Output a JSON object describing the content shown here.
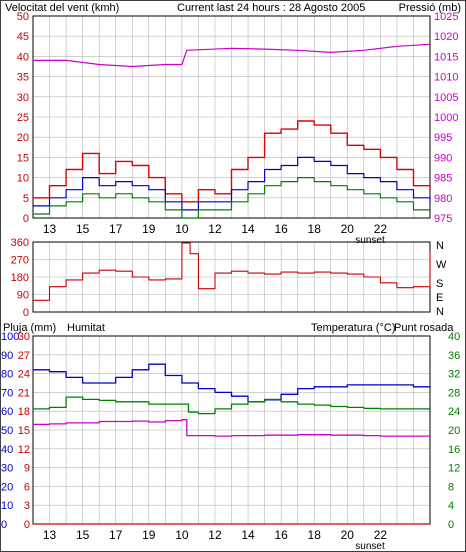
{
  "colors": {
    "wind": "#e00000",
    "windAvg": "#0000cc",
    "windDir": "#cc0000",
    "pressure": "#cc00cc",
    "green": "#008000",
    "humidity": "#0000cc",
    "dewPoint": "#cc00cc",
    "rain": "#cc0000",
    "grid": "#b4b4b4",
    "axisRed": "#cc0000",
    "axisBlue": "#0000cc",
    "axisMagenta": "#cc00cc",
    "axisGreen": "#008000",
    "ink": "#000000"
  },
  "header": {
    "wind_label": "Velocitat del vent (kmh)",
    "title": "Current last 24 hours : 28 Agosto 2005",
    "pressure_label": "Pressió (mb)"
  },
  "middle": {
    "label_n1": "N",
    "label_w": "W",
    "label_s": "S",
    "label_e": "E",
    "label_n2": "N"
  },
  "bottom": {
    "rain_label": "Pluja (mm)",
    "humidity_label": "Humitat",
    "temp_label": "Temperatura (°C)",
    "dew_label": "Punt rosada"
  },
  "x_labels": [
    "13",
    "15",
    "17",
    "19",
    "10",
    "12",
    "14",
    "16",
    "18",
    "20",
    "22"
  ],
  "sunset_label": "sunset",
  "chart_data": [
    {
      "type": "line",
      "axes": {
        "left": {
          "label": "Velocitat del vent (kmh)",
          "ticks": [
            0,
            5,
            10,
            15,
            20,
            25,
            30,
            35,
            40,
            45,
            50
          ],
          "range": [
            0,
            50
          ]
        },
        "right": {
          "label": "Pressió (mb)",
          "ticks": [
            975,
            980,
            985,
            990,
            995,
            1000,
            1005,
            1010,
            1015,
            1020,
            1025
          ],
          "range": [
            975,
            1025
          ]
        }
      },
      "series": [
        {
          "name": "Velocitat del vent (kmh)",
          "axis": "left",
          "color": "#e00000",
          "x": [
            0,
            1,
            2,
            3,
            4,
            5,
            6,
            7,
            8,
            9,
            10,
            11,
            12,
            13,
            14,
            15,
            16,
            17,
            18,
            19,
            20,
            21,
            22,
            23,
            24
          ],
          "values": [
            5,
            8,
            12,
            16,
            11,
            14,
            13,
            10,
            6,
            4,
            7,
            6,
            12,
            15,
            21,
            22,
            24,
            23,
            21,
            18,
            17,
            15,
            12,
            8,
            7
          ]
        },
        {
          "name": "Velocitat mitjana (kmh)",
          "axis": "left",
          "color": "#0000cc",
          "x": [
            0,
            1,
            2,
            3,
            4,
            5,
            6,
            7,
            8,
            9,
            10,
            11,
            12,
            13,
            14,
            15,
            16,
            17,
            18,
            19,
            20,
            21,
            22,
            23,
            24
          ],
          "values": [
            3,
            5,
            7,
            10,
            8,
            9,
            8,
            7,
            4,
            2,
            4,
            4,
            7,
            9,
            12,
            13,
            15,
            14,
            13,
            11,
            10,
            9,
            7,
            5,
            4
          ]
        },
        {
          "name": "Ratxa",
          "axis": "left",
          "color": "#008000",
          "x": [
            0,
            1,
            2,
            3,
            4,
            5,
            6,
            7,
            8,
            9,
            10,
            11,
            12,
            13,
            14,
            15,
            16,
            17,
            18,
            19,
            20,
            21,
            22,
            23,
            24
          ],
          "values": [
            1,
            3,
            4,
            6,
            5,
            6,
            5,
            4,
            2,
            0,
            2,
            2,
            4,
            6,
            8,
            9,
            10,
            9,
            8,
            7,
            6,
            5,
            4,
            2,
            2
          ]
        },
        {
          "name": "Pressió (mb)",
          "axis": "right",
          "color": "#cc00cc",
          "x": [
            0,
            2,
            4,
            6,
            8,
            9,
            9.3,
            12,
            14,
            16,
            18,
            20,
            22,
            24
          ],
          "values": [
            1014,
            1014,
            1013,
            1012.5,
            1013,
            1013,
            1016.5,
            1017,
            1016.8,
            1016.5,
            1016,
            1016.5,
            1017.5,
            1018
          ]
        }
      ]
    },
    {
      "type": "line",
      "axes": {
        "left": {
          "label": "",
          "ticks": [
            0,
            90,
            180,
            270,
            360
          ],
          "range": [
            0,
            360
          ]
        },
        "right": {
          "label": "",
          "ticks": [
            "N",
            "W",
            "S",
            "E",
            "N"
          ]
        }
      },
      "series": [
        {
          "name": "Direcció del vent",
          "color": "#cc0000",
          "x": [
            0,
            1,
            2,
            3,
            4,
            5,
            6,
            7,
            8,
            9,
            9.5,
            10,
            11,
            12,
            13,
            14,
            15,
            16,
            17,
            18,
            19,
            20,
            21,
            22,
            23,
            24
          ],
          "values": [
            60,
            130,
            165,
            200,
            215,
            210,
            180,
            165,
            170,
            355,
            300,
            120,
            200,
            210,
            200,
            195,
            205,
            200,
            205,
            200,
            195,
            180,
            150,
            125,
            130,
            315
          ]
        }
      ]
    },
    {
      "type": "line",
      "axes": {
        "rain": {
          "label": "Pluja (mm)",
          "ticks": [
            0,
            10,
            20,
            30,
            40,
            50,
            60,
            70,
            80,
            90,
            100
          ],
          "range": [
            0,
            100
          ]
        },
        "humidity": {
          "label": "Humitat",
          "ticks": [
            0,
            3,
            6,
            9,
            12,
            15,
            18,
            21,
            24,
            27,
            30
          ],
          "range": [
            0,
            30
          ]
        },
        "temperature": {
          "label": "Temperatura (°C)",
          "ticks": [
            0,
            4,
            8,
            12,
            16,
            20,
            24,
            28,
            32,
            36,
            40
          ],
          "range": [
            0,
            40
          ]
        }
      },
      "series": [
        {
          "name": "Humitat",
          "color": "#0000cc",
          "x": [
            0,
            1,
            2,
            3,
            4,
            5,
            6,
            7,
            8,
            9,
            10,
            11,
            12,
            13,
            14,
            15,
            16,
            17,
            18,
            19,
            20,
            21,
            22,
            23,
            24
          ],
          "values": [
            82,
            81,
            78,
            75,
            75,
            78,
            82,
            85,
            79,
            75,
            72,
            70,
            68,
            65,
            66,
            69,
            72,
            73,
            73,
            74,
            74,
            74,
            74,
            73,
            73
          ]
        },
        {
          "name": "Temperatura (°C)",
          "color": "#008000",
          "x": [
            0,
            1,
            2,
            3,
            4,
            5,
            6,
            7,
            8,
            9,
            9.4,
            10,
            11,
            12,
            13,
            14,
            15,
            16,
            17,
            18,
            19,
            20,
            21,
            22,
            23,
            24
          ],
          "values": [
            24.5,
            24.8,
            27,
            26.5,
            26.3,
            26,
            26,
            25.5,
            25.5,
            25.5,
            23.8,
            23.5,
            24.5,
            25.5,
            26,
            26.5,
            26,
            25.5,
            25.3,
            25,
            24.8,
            24.6,
            24.5,
            24.5,
            24.5,
            24.5
          ]
        },
        {
          "name": "Punt rosada",
          "color": "#cc00cc",
          "x": [
            0,
            1,
            2,
            3,
            4,
            5,
            6,
            7,
            8,
            9,
            9.3,
            10,
            11,
            12,
            13,
            14,
            15,
            16,
            17,
            18,
            19,
            20,
            21,
            22,
            23,
            24
          ],
          "values": [
            21.2,
            21.3,
            21.5,
            21.5,
            21.8,
            21.8,
            21.9,
            21.7,
            22,
            22.2,
            18.8,
            18.8,
            18.7,
            18.8,
            18.8,
            18.9,
            18.9,
            19,
            19,
            18.9,
            18.9,
            18.8,
            18.7,
            18.7,
            18.7,
            18.7
          ]
        },
        {
          "name": "Pluja (mm)",
          "color": "#cc0000",
          "x": [
            0,
            24
          ],
          "values": [
            0,
            0
          ]
        }
      ]
    }
  ]
}
